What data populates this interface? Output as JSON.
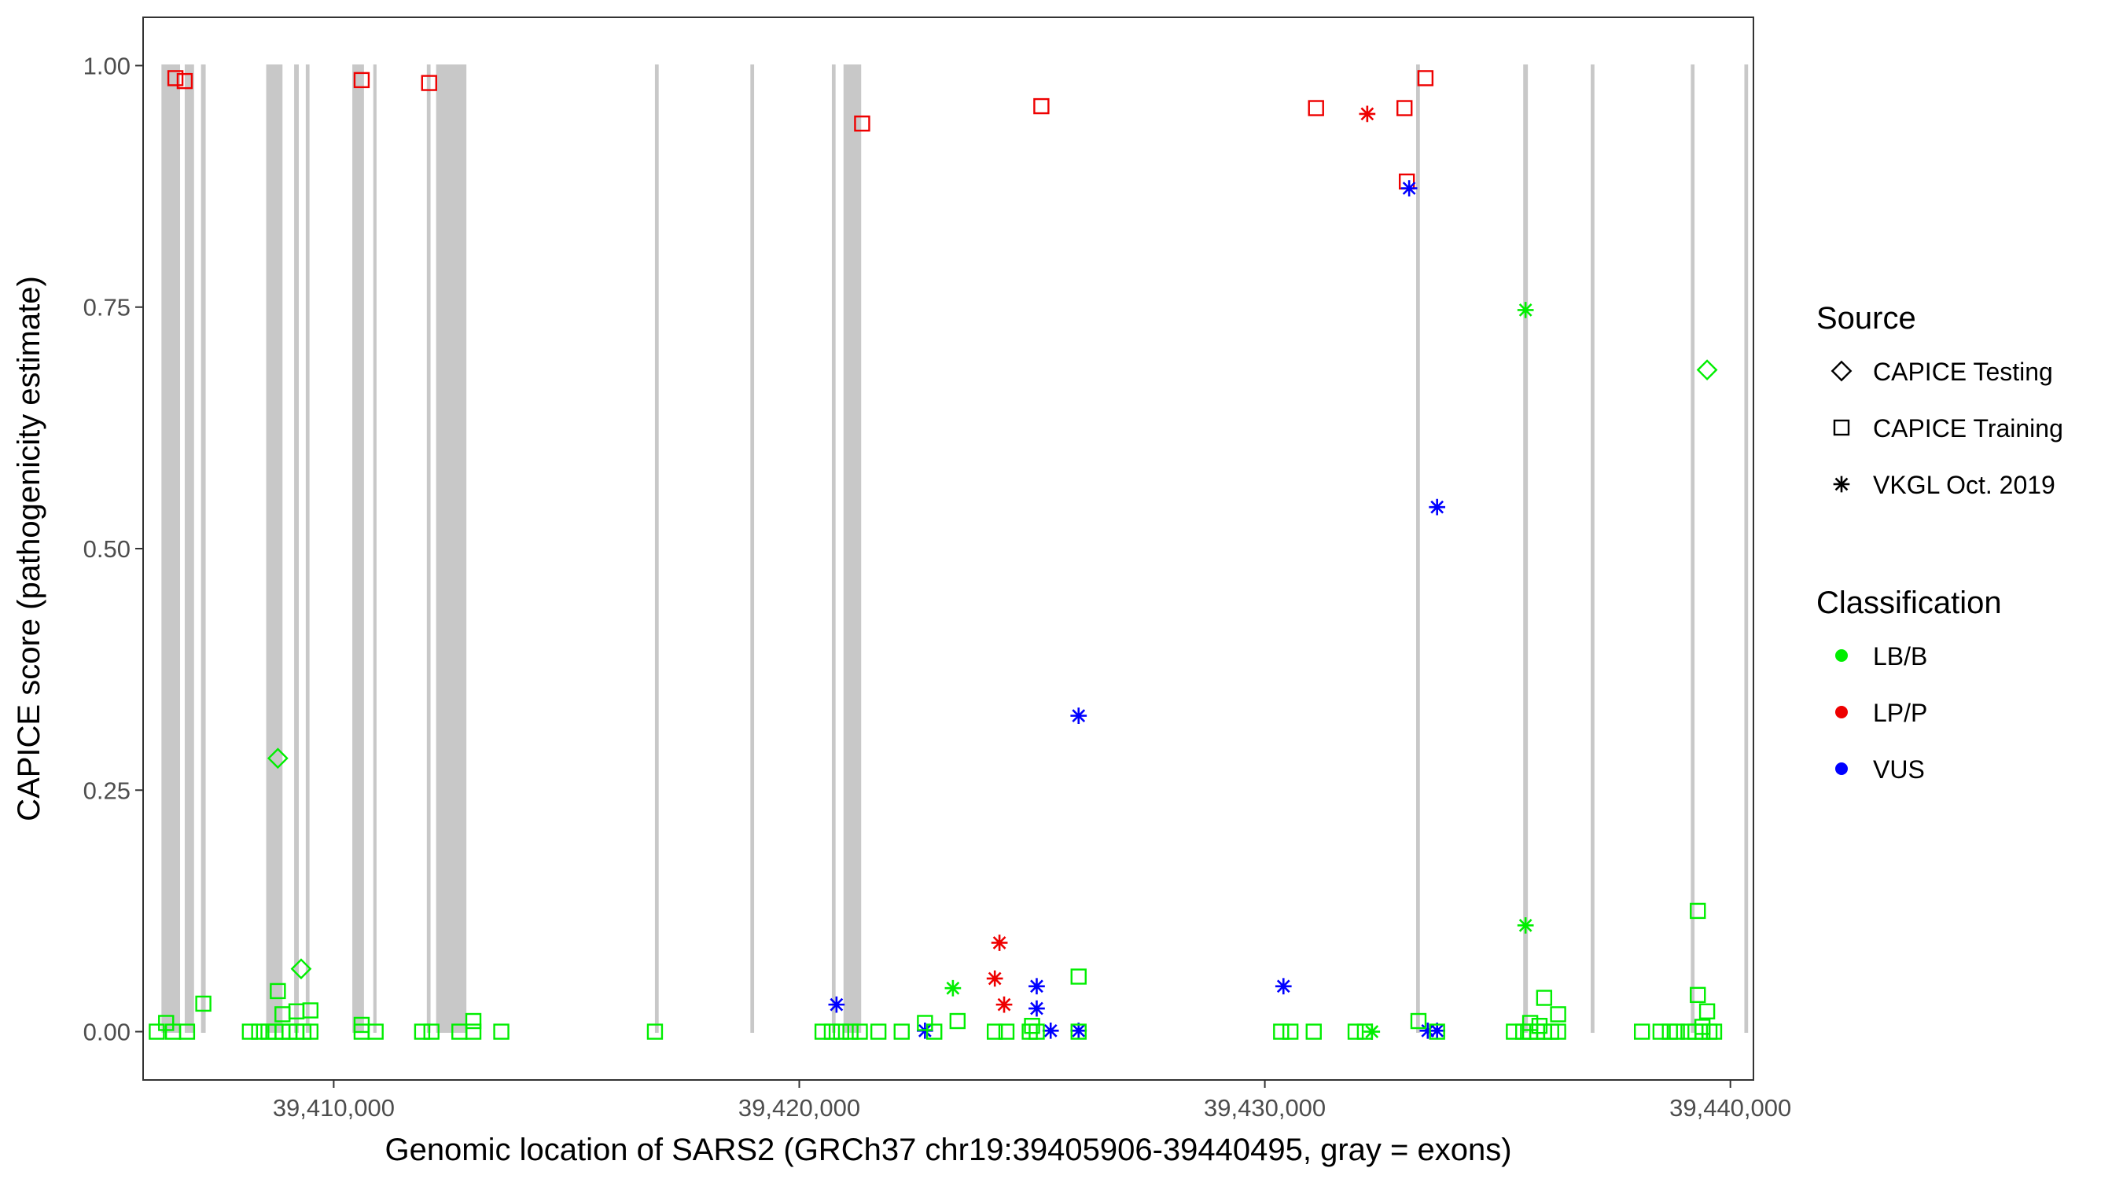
{
  "chart_data": {
    "type": "scatter",
    "xlabel": "Genomic location of SARS2 (GRCh37 chr19:39405906-39440495, gray = exons)",
    "ylabel": "CAPICE score (pathogenicity estimate)",
    "xlim": [
      39405906,
      39440495
    ],
    "ylim": [
      -0.05,
      1.05
    ],
    "x_ticks": [
      39410000,
      39420000,
      39430000,
      39440000
    ],
    "x_tick_labels": [
      "39,410,000",
      "39,420,000",
      "39,430,000",
      "39,440,000"
    ],
    "y_ticks": [
      0,
      0.25,
      0.5,
      0.75,
      1.0
    ],
    "y_tick_labels": [
      "0.00",
      "0.25",
      "0.50",
      "0.75",
      "1.00"
    ],
    "grid": false,
    "legend_position": "right",
    "legends": [
      {
        "title": "Source",
        "items": [
          {
            "label": "CAPICE Testing",
            "shape": "diamond"
          },
          {
            "label": "CAPICE Training",
            "shape": "square"
          },
          {
            "label": "VKGL Oct. 2019",
            "shape": "asterisk"
          }
        ]
      },
      {
        "title": "Classification",
        "items": [
          {
            "label": "LB/B",
            "color": "#00ee00"
          },
          {
            "label": "LP/P",
            "color": "#ee0000"
          },
          {
            "label": "VUS",
            "color": "#0000ff"
          }
        ]
      }
    ],
    "colors": {
      "LB/B": "#00ee00",
      "LP/P": "#ee0000",
      "VUS": "#0000ff",
      "exon": "#c8c8c8"
    },
    "exons": [
      [
        39406300,
        39406700
      ],
      [
        39406800,
        39407000
      ],
      [
        39407150,
        39407250
      ],
      [
        39408550,
        39408900
      ],
      [
        39409150,
        39409250
      ],
      [
        39409400,
        39409480
      ],
      [
        39410400,
        39410650
      ],
      [
        39410850,
        39410920
      ],
      [
        39412000,
        39412080
      ],
      [
        39412200,
        39412850
      ],
      [
        39416900,
        39416980
      ],
      [
        39418950,
        39419030
      ],
      [
        39420700,
        39420780
      ],
      [
        39420950,
        39421330
      ],
      [
        39433250,
        39433330
      ],
      [
        39435550,
        39435650
      ],
      [
        39437000,
        39437080
      ],
      [
        39439150,
        39439230
      ],
      [
        39440300,
        39440380
      ]
    ],
    "series": [
      {
        "source": "CAPICE Training",
        "classification": "LP/P",
        "points": [
          [
            39406600,
            0.987
          ],
          [
            39406800,
            0.984
          ],
          [
            39410600,
            0.985
          ],
          [
            39412050,
            0.982
          ],
          [
            39421350,
            0.94
          ],
          [
            39425200,
            0.958
          ],
          [
            39431100,
            0.956
          ],
          [
            39433000,
            0.956
          ],
          [
            39433450,
            0.987
          ],
          [
            39433050,
            0.88
          ]
        ]
      },
      {
        "source": "VKGL Oct. 2019",
        "classification": "LP/P",
        "points": [
          [
            39432200,
            0.95
          ],
          [
            39424300,
            0.092
          ],
          [
            39424200,
            0.055
          ],
          [
            39424400,
            0.028
          ]
        ]
      },
      {
        "source": "VKGL Oct. 2019",
        "classification": "VUS",
        "points": [
          [
            39433100,
            0.873
          ],
          [
            39433700,
            0.543
          ],
          [
            39426000,
            0.327
          ],
          [
            39430400,
            0.047
          ],
          [
            39425100,
            0.047
          ],
          [
            39420800,
            0.028
          ],
          [
            39425100,
            0.024
          ],
          [
            39422700,
            0.001
          ],
          [
            39425400,
            0.001
          ],
          [
            39426000,
            0.001
          ],
          [
            39433500,
            0.001
          ],
          [
            39433700,
            0.001
          ]
        ]
      },
      {
        "source": "VKGL Oct. 2019",
        "classification": "LB/B",
        "points": [
          [
            39435600,
            0.747
          ],
          [
            39435600,
            0.11
          ],
          [
            39423300,
            0.045
          ],
          [
            39432300,
            0.0
          ]
        ]
      },
      {
        "source": "CAPICE Testing",
        "classification": "LB/B",
        "points": [
          [
            39439500,
            0.685
          ],
          [
            39408800,
            0.283
          ],
          [
            39409300,
            0.065
          ]
        ]
      },
      {
        "source": "CAPICE Training",
        "classification": "LB/B",
        "points": [
          [
            39439300,
            0.125
          ],
          [
            39426000,
            0.057
          ],
          [
            39408800,
            0.042
          ],
          [
            39439300,
            0.038
          ],
          [
            39436000,
            0.035
          ],
          [
            39407200,
            0.029
          ],
          [
            39409500,
            0.022
          ],
          [
            39409200,
            0.021
          ],
          [
            39439500,
            0.021
          ],
          [
            39436300,
            0.018
          ],
          [
            39408900,
            0.018
          ],
          [
            39413000,
            0.011
          ],
          [
            39423400,
            0.011
          ],
          [
            39433300,
            0.011
          ],
          [
            39406400,
            0.009
          ],
          [
            39422700,
            0.009
          ],
          [
            39435700,
            0.009
          ],
          [
            39410600,
            0.007
          ],
          [
            39425000,
            0.006
          ],
          [
            39435900,
            0.006
          ],
          [
            39439400,
            0.005
          ],
          [
            39406200,
            0.0
          ],
          [
            39406550,
            0.0
          ],
          [
            39406850,
            0.0
          ],
          [
            39408200,
            0.0
          ],
          [
            39408400,
            0.0
          ],
          [
            39408600,
            0.0
          ],
          [
            39408750,
            0.0
          ],
          [
            39408900,
            0.0
          ],
          [
            39409050,
            0.0
          ],
          [
            39409200,
            0.0
          ],
          [
            39409350,
            0.0
          ],
          [
            39409500,
            0.0
          ],
          [
            39410600,
            0.0
          ],
          [
            39410900,
            0.0
          ],
          [
            39411900,
            0.0
          ],
          [
            39412100,
            0.0
          ],
          [
            39412700,
            0.0
          ],
          [
            39413000,
            0.0
          ],
          [
            39413600,
            0.0
          ],
          [
            39416900,
            0.0
          ],
          [
            39420500,
            0.0
          ],
          [
            39420700,
            0.0
          ],
          [
            39420900,
            0.0
          ],
          [
            39421100,
            0.0
          ],
          [
            39421300,
            0.0
          ],
          [
            39421700,
            0.0
          ],
          [
            39422200,
            0.0
          ],
          [
            39422900,
            0.0
          ],
          [
            39424200,
            0.0
          ],
          [
            39424450,
            0.0
          ],
          [
            39424950,
            0.0
          ],
          [
            39425100,
            0.0
          ],
          [
            39426000,
            0.0
          ],
          [
            39430350,
            0.0
          ],
          [
            39430550,
            0.0
          ],
          [
            39431050,
            0.0
          ],
          [
            39431950,
            0.0
          ],
          [
            39432150,
            0.0
          ],
          [
            39433700,
            0.0
          ],
          [
            39435350,
            0.0
          ],
          [
            39435550,
            0.0
          ],
          [
            39435700,
            0.0
          ],
          [
            39435850,
            0.0
          ],
          [
            39436000,
            0.0
          ],
          [
            39436150,
            0.0
          ],
          [
            39436300,
            0.0
          ],
          [
            39438100,
            0.0
          ],
          [
            39438500,
            0.0
          ],
          [
            39438700,
            0.0
          ],
          [
            39438850,
            0.0
          ],
          [
            39439100,
            0.0
          ],
          [
            39439250,
            0.0
          ],
          [
            39439400,
            0.0
          ],
          [
            39439550,
            0.0
          ],
          [
            39439650,
            0.0
          ]
        ]
      }
    ]
  }
}
